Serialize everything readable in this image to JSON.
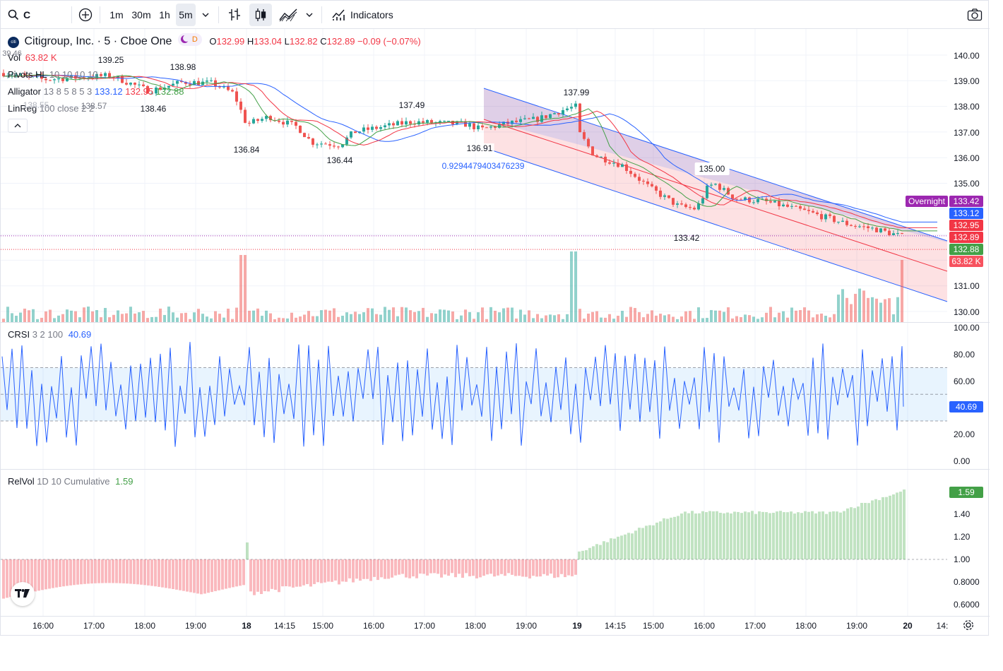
{
  "toolbar": {
    "symbol": "C",
    "intervals": [
      "1m",
      "30m",
      "1h",
      "5m"
    ],
    "active_interval": "5m",
    "indicators_label": "Indicators"
  },
  "legend": {
    "title": "Citigroup, Inc. · 5 · Cboe One",
    "logo_text": "citi",
    "badge_d": "D",
    "ohlc": {
      "o_label": "O",
      "o": "132.99",
      "h_label": "H",
      "h": "133.04",
      "l_label": "L",
      "l": "132.82",
      "c_label": "C",
      "c": "132.89",
      "change": "−0.09 (−0.07%)"
    },
    "vol": {
      "name": "Vol",
      "value": "63.82 K"
    },
    "pivots": {
      "name": "Pivots HL",
      "params": "10 10 10 10"
    },
    "alligator": {
      "name": "Alligator",
      "params": "13 8 5 8 5 3",
      "jaw": "133.12",
      "teeth": "132.95",
      "lips": "132.88"
    },
    "linreg": {
      "name": "LinReg",
      "params": "100 close 2 2"
    }
  },
  "annotations": {
    "pivot_labels": [
      "139.25",
      "138.98",
      "138.46",
      "136.84",
      "136.44",
      "137.49",
      "136.91",
      "137.99",
      "135.00",
      "133.42"
    ],
    "partial_labels": [
      "39.46",
      "138.55",
      "138.57"
    ],
    "linreg_value": "0.9294479403476239"
  },
  "price_axis": {
    "ticks": [
      "140.00",
      "139.00",
      "138.00",
      "137.00",
      "136.00",
      "135.00",
      "131.00",
      "130.00"
    ],
    "tags": [
      {
        "label": "Overnight",
        "value": "133.42",
        "color": "#9c27b0"
      },
      {
        "value": "133.12",
        "color": "#2962ff"
      },
      {
        "value": "132.95",
        "color": "#f23645"
      },
      {
        "value": "132.89",
        "color": "#f23645"
      },
      {
        "value": "132.88",
        "color": "#43a047"
      },
      {
        "value": "63.82 K",
        "color": "#f7525f"
      }
    ]
  },
  "crsi": {
    "name": "CRSI",
    "params": "3 2 100",
    "value": "40.69",
    "ticks": [
      "100.00",
      "80.00",
      "60.00",
      "20.00",
      "0.00"
    ],
    "current_tag": "40.69"
  },
  "relvol": {
    "name": "RelVol",
    "params": "1D 10 Cumulative",
    "value": "1.59",
    "ticks": [
      "1.40",
      "1.20",
      "1.00",
      "0.8000",
      "0.6000"
    ],
    "current_tag": "1.59"
  },
  "time_axis": [
    "16:00",
    "17:00",
    "18:00",
    "19:00",
    "18",
    "14:15",
    "15:00",
    "16:00",
    "17:00",
    "18:00",
    "19:00",
    "19",
    "14:15",
    "15:00",
    "16:00",
    "17:00",
    "18:00",
    "19:00",
    "20",
    "14:"
  ],
  "colors": {
    "up": "#26a69a",
    "down": "#ef5350",
    "jaw": "#2962ff",
    "teeth": "#f23645",
    "lips": "#43a047",
    "crsi": "#2962ff"
  }
}
